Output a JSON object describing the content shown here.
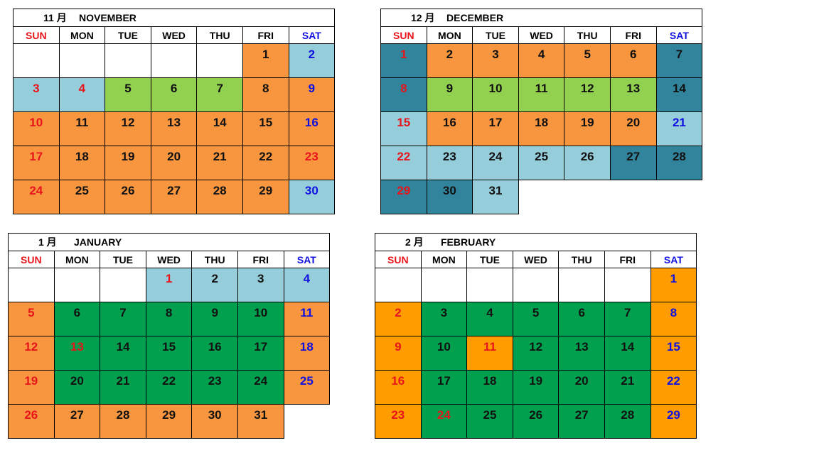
{
  "weekday_labels": [
    "SUN",
    "MON",
    "TUE",
    "WED",
    "THU",
    "FRI",
    "SAT"
  ],
  "colors": {
    "orange": "#f7963f",
    "lightblue": "#96cddb",
    "teal": "#31849b",
    "lightgreen": "#92d050",
    "green": "#00a04f",
    "brightorange": "#ff9c00",
    "sun_text": "#e8141c",
    "sat_text": "#1010e0"
  },
  "months": [
    {
      "id": "november",
      "num": "11 月",
      "name": "NOVEMBER",
      "weeks": [
        [
          null,
          null,
          null,
          null,
          null,
          {
            "d": "1",
            "bg": "orange"
          },
          {
            "d": "2",
            "bg": "lightblue",
            "c": "blue"
          }
        ],
        [
          {
            "d": "3",
            "bg": "lightblue",
            "c": "red"
          },
          {
            "d": "4",
            "bg": "lightblue",
            "c": "red"
          },
          {
            "d": "5",
            "bg": "lightgreen"
          },
          {
            "d": "6",
            "bg": "lightgreen"
          },
          {
            "d": "7",
            "bg": "lightgreen"
          },
          {
            "d": "8",
            "bg": "orange"
          },
          {
            "d": "9",
            "bg": "orange",
            "c": "blue"
          }
        ],
        [
          {
            "d": "10",
            "bg": "orange",
            "c": "red"
          },
          {
            "d": "11",
            "bg": "orange"
          },
          {
            "d": "12",
            "bg": "orange"
          },
          {
            "d": "13",
            "bg": "orange"
          },
          {
            "d": "14",
            "bg": "orange"
          },
          {
            "d": "15",
            "bg": "orange"
          },
          {
            "d": "16",
            "bg": "orange",
            "c": "blue"
          }
        ],
        [
          {
            "d": "17",
            "bg": "orange",
            "c": "red"
          },
          {
            "d": "18",
            "bg": "orange"
          },
          {
            "d": "19",
            "bg": "orange"
          },
          {
            "d": "20",
            "bg": "orange"
          },
          {
            "d": "21",
            "bg": "orange"
          },
          {
            "d": "22",
            "bg": "orange"
          },
          {
            "d": "23",
            "bg": "orange",
            "c": "red"
          }
        ],
        [
          {
            "d": "24",
            "bg": "orange",
            "c": "red"
          },
          {
            "d": "25",
            "bg": "orange"
          },
          {
            "d": "26",
            "bg": "orange"
          },
          {
            "d": "27",
            "bg": "orange"
          },
          {
            "d": "28",
            "bg": "orange"
          },
          {
            "d": "29",
            "bg": "orange"
          },
          {
            "d": "30",
            "bg": "lightblue",
            "c": "blue"
          }
        ]
      ]
    },
    {
      "id": "december",
      "num": "12 月",
      "name": "DECEMBER",
      "weeks": [
        [
          {
            "d": "1",
            "bg": "teal",
            "c": "red"
          },
          {
            "d": "2",
            "bg": "orange"
          },
          {
            "d": "3",
            "bg": "orange"
          },
          {
            "d": "4",
            "bg": "orange"
          },
          {
            "d": "5",
            "bg": "orange"
          },
          {
            "d": "6",
            "bg": "orange"
          },
          {
            "d": "7",
            "bg": "teal"
          }
        ],
        [
          {
            "d": "8",
            "bg": "teal",
            "c": "red"
          },
          {
            "d": "9",
            "bg": "lightgreen"
          },
          {
            "d": "10",
            "bg": "lightgreen"
          },
          {
            "d": "11",
            "bg": "lightgreen"
          },
          {
            "d": "12",
            "bg": "lightgreen"
          },
          {
            "d": "13",
            "bg": "lightgreen"
          },
          {
            "d": "14",
            "bg": "teal"
          }
        ],
        [
          {
            "d": "15",
            "bg": "lightblue",
            "c": "red"
          },
          {
            "d": "16",
            "bg": "orange"
          },
          {
            "d": "17",
            "bg": "orange"
          },
          {
            "d": "18",
            "bg": "orange"
          },
          {
            "d": "19",
            "bg": "orange"
          },
          {
            "d": "20",
            "bg": "orange"
          },
          {
            "d": "21",
            "bg": "lightblue",
            "c": "blue"
          }
        ],
        [
          {
            "d": "22",
            "bg": "lightblue",
            "c": "red"
          },
          {
            "d": "23",
            "bg": "lightblue"
          },
          {
            "d": "24",
            "bg": "lightblue"
          },
          {
            "d": "25",
            "bg": "lightblue"
          },
          {
            "d": "26",
            "bg": "lightblue"
          },
          {
            "d": "27",
            "bg": "teal"
          },
          {
            "d": "28",
            "bg": "teal"
          }
        ],
        [
          {
            "d": "29",
            "bg": "teal",
            "c": "red"
          },
          {
            "d": "30",
            "bg": "teal"
          },
          {
            "d": "31",
            "bg": "lightblue"
          },
          "none",
          "none",
          "none",
          "none"
        ]
      ]
    },
    {
      "id": "january",
      "num": "1 月",
      "name": "JANUARY",
      "weeks": [
        [
          null,
          null,
          null,
          {
            "d": "1",
            "bg": "lightblue",
            "c": "red"
          },
          {
            "d": "2",
            "bg": "lightblue"
          },
          {
            "d": "3",
            "bg": "lightblue"
          },
          {
            "d": "4",
            "bg": "lightblue",
            "c": "blue"
          }
        ],
        [
          {
            "d": "5",
            "bg": "orange",
            "c": "red"
          },
          {
            "d": "6",
            "bg": "green"
          },
          {
            "d": "7",
            "bg": "green"
          },
          {
            "d": "8",
            "bg": "green"
          },
          {
            "d": "9",
            "bg": "green"
          },
          {
            "d": "10",
            "bg": "green"
          },
          {
            "d": "11",
            "bg": "orange",
            "c": "blue"
          }
        ],
        [
          {
            "d": "12",
            "bg": "orange",
            "c": "red"
          },
          {
            "d": "13",
            "bg": "green",
            "c": "red"
          },
          {
            "d": "14",
            "bg": "green"
          },
          {
            "d": "15",
            "bg": "green"
          },
          {
            "d": "16",
            "bg": "green"
          },
          {
            "d": "17",
            "bg": "green"
          },
          {
            "d": "18",
            "bg": "orange",
            "c": "blue"
          }
        ],
        [
          {
            "d": "19",
            "bg": "orange",
            "c": "red"
          },
          {
            "d": "20",
            "bg": "green"
          },
          {
            "d": "21",
            "bg": "green"
          },
          {
            "d": "22",
            "bg": "green"
          },
          {
            "d": "23",
            "bg": "green"
          },
          {
            "d": "24",
            "bg": "green"
          },
          {
            "d": "25",
            "bg": "orange",
            "c": "blue"
          }
        ],
        [
          {
            "d": "26",
            "bg": "orange",
            "c": "red"
          },
          {
            "d": "27",
            "bg": "orange"
          },
          {
            "d": "28",
            "bg": "orange"
          },
          {
            "d": "29",
            "bg": "orange"
          },
          {
            "d": "30",
            "bg": "orange"
          },
          {
            "d": "31",
            "bg": "orange"
          },
          "none"
        ]
      ]
    },
    {
      "id": "february",
      "num": "2 月",
      "name": "FEBRUARY",
      "weeks": [
        [
          null,
          null,
          null,
          null,
          null,
          null,
          {
            "d": "1",
            "bg": "brightorange",
            "c": "blue"
          }
        ],
        [
          {
            "d": "2",
            "bg": "brightorange",
            "c": "red"
          },
          {
            "d": "3",
            "bg": "green"
          },
          {
            "d": "4",
            "bg": "green"
          },
          {
            "d": "5",
            "bg": "green"
          },
          {
            "d": "6",
            "bg": "green"
          },
          {
            "d": "7",
            "bg": "green"
          },
          {
            "d": "8",
            "bg": "brightorange",
            "c": "blue"
          }
        ],
        [
          {
            "d": "9",
            "bg": "brightorange",
            "c": "red"
          },
          {
            "d": "10",
            "bg": "green"
          },
          {
            "d": "11",
            "bg": "brightorange",
            "c": "red"
          },
          {
            "d": "12",
            "bg": "green"
          },
          {
            "d": "13",
            "bg": "green"
          },
          {
            "d": "14",
            "bg": "green"
          },
          {
            "d": "15",
            "bg": "brightorange",
            "c": "blue"
          }
        ],
        [
          {
            "d": "16",
            "bg": "brightorange",
            "c": "red"
          },
          {
            "d": "17",
            "bg": "green"
          },
          {
            "d": "18",
            "bg": "green"
          },
          {
            "d": "19",
            "bg": "green"
          },
          {
            "d": "20",
            "bg": "green"
          },
          {
            "d": "21",
            "bg": "green"
          },
          {
            "d": "22",
            "bg": "brightorange",
            "c": "blue"
          }
        ],
        [
          {
            "d": "23",
            "bg": "brightorange",
            "c": "red"
          },
          {
            "d": "24",
            "bg": "green",
            "c": "red"
          },
          {
            "d": "25",
            "bg": "green"
          },
          {
            "d": "26",
            "bg": "green"
          },
          {
            "d": "27",
            "bg": "green"
          },
          {
            "d": "28",
            "bg": "green"
          },
          {
            "d": "29",
            "bg": "brightorange",
            "c": "blue"
          }
        ]
      ]
    }
  ]
}
